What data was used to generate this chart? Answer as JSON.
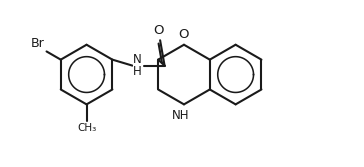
{
  "bg_color": "#ffffff",
  "line_color": "#1a1a1a",
  "bond_lw": 1.5,
  "figsize": [
    3.64,
    1.67
  ],
  "dpi": 100,
  "xlim": [
    -4.5,
    5.5
  ],
  "ylim": [
    -2.8,
    2.8
  ]
}
